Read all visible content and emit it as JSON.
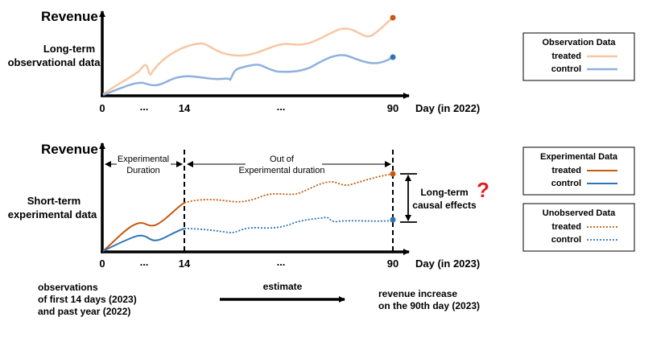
{
  "top": {
    "title": "Revenue",
    "side_label": [
      "Long-term",
      "observational data"
    ],
    "ticks": {
      "zero": "0",
      "ellipsis_a": "...",
      "fourteen": "14",
      "ellipsis_b": "...",
      "ninety": "90"
    },
    "axis_label": "Day (in 2022)"
  },
  "bottom": {
    "title": "Revenue",
    "side_label": [
      "Short-term",
      "experimental data"
    ],
    "ticks": {
      "zero": "0",
      "ellipsis_a": "...",
      "fourteen": "14",
      "ellipsis_b": "...",
      "ninety": "90"
    },
    "axis_label": "Day (in 2023)",
    "exp_duration": [
      "Experimental",
      "Duration"
    ],
    "out_duration": [
      "Out of",
      "Experimental duration"
    ],
    "causal_label": [
      "Long-term",
      "causal effects"
    ],
    "question_mark": "?"
  },
  "footer": {
    "observations": [
      "observations",
      "of first 14 days (2023)",
      "and past year (2022)"
    ],
    "estimate": "estimate",
    "outcome": [
      "revenue increase",
      "on the 90th day (2023)"
    ]
  },
  "legends": {
    "observation": {
      "title": "Observation Data",
      "treated": "treated",
      "control": "control"
    },
    "experimental": {
      "title": "Experimental Data",
      "treated": "treated",
      "control": "control"
    },
    "unobserved": {
      "title": "Unobserved Data",
      "treated": "treated",
      "control": "control"
    }
  },
  "colors": {
    "obs_treated": "#f7c7a3",
    "obs_control": "#8fb0dd",
    "exp_treated": "#c55a11",
    "exp_control": "#2e75b6",
    "question": "#e02020"
  }
}
